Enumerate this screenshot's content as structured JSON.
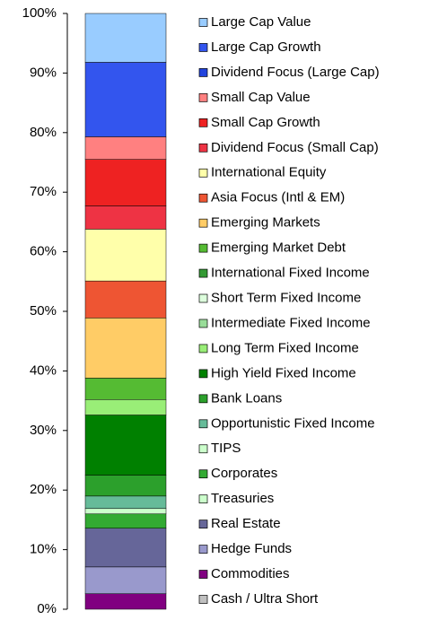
{
  "chart_data": {
    "type": "stacked_bar",
    "categories": [
      null
    ],
    "ylim": [
      0,
      100
    ],
    "yticks": [
      {
        "value": 0,
        "label": "0%"
      },
      {
        "value": 10,
        "label": "10%"
      },
      {
        "value": 20,
        "label": "20%"
      },
      {
        "value": 30,
        "label": "30%"
      },
      {
        "value": 40,
        "label": "40%"
      },
      {
        "value": 50,
        "label": "50%"
      },
      {
        "value": 60,
        "label": "60%"
      },
      {
        "value": 70,
        "label": "70%"
      },
      {
        "value": 80,
        "label": "80%"
      },
      {
        "value": 90,
        "label": "90%"
      },
      {
        "value": 100,
        "label": "100%"
      }
    ],
    "series": [
      {
        "name": "Cash / Ultra Short",
        "color": "#c0c0c0",
        "values": [
          0
        ]
      },
      {
        "name": "Commodities",
        "color": "#800080",
        "values": [
          2.6
        ]
      },
      {
        "name": "Hedge Funds",
        "color": "#9999cc",
        "values": [
          4.5
        ]
      },
      {
        "name": "Real Estate",
        "color": "#666699",
        "values": [
          6.5
        ]
      },
      {
        "name": "Treasuries",
        "color": "#ccffcc",
        "values": [
          0
        ]
      },
      {
        "name": "Corporates",
        "color": "#33aa33",
        "values": [
          2.4
        ]
      },
      {
        "name": "TIPS",
        "color": "#ccffcc",
        "values": [
          0.9
        ]
      },
      {
        "name": "Opportunistic Fixed Income",
        "color": "#66bb99",
        "values": [
          2.1
        ]
      },
      {
        "name": "Bank Loans",
        "color": "#2ca02c",
        "values": [
          3.5
        ]
      },
      {
        "name": "High Yield Fixed Income",
        "color": "#008000",
        "values": [
          10.1
        ]
      },
      {
        "name": "Long Term Fixed Income",
        "color": "#99ee77",
        "values": [
          2.6
        ]
      },
      {
        "name": "Intermediate Fixed Income",
        "color": "#99dd99",
        "values": [
          0
        ]
      },
      {
        "name": "Short Term Fixed Income",
        "color": "#ddffdd",
        "values": [
          0
        ]
      },
      {
        "name": "International Fixed Income",
        "color": "#339933",
        "values": [
          0
        ]
      },
      {
        "name": "Emerging Market Debt",
        "color": "#55bb33",
        "values": [
          3.6
        ]
      },
      {
        "name": "Emerging Markets",
        "color": "#ffcc66",
        "values": [
          10.1
        ]
      },
      {
        "name": "Asia Focus (Intl & EM)",
        "color": "#ee5533",
        "values": [
          6.2
        ]
      },
      {
        "name": "International Equity",
        "color": "#ffffaa",
        "values": [
          8.7
        ]
      },
      {
        "name": "Dividend Focus (Small Cap)",
        "color": "#ee3344",
        "values": [
          3.9
        ]
      },
      {
        "name": "Small Cap Growth",
        "color": "#ee2222",
        "values": [
          7.8
        ]
      },
      {
        "name": "Small Cap Value",
        "color": "#ff8080",
        "values": [
          3.8
        ]
      },
      {
        "name": "Dividend Focus (Large Cap)",
        "color": "#2244dd",
        "values": [
          0
        ]
      },
      {
        "name": "Large Cap Growth",
        "color": "#3355ee",
        "values": [
          12.5
        ]
      },
      {
        "name": "Large Cap Value",
        "color": "#99ccff",
        "values": [
          8.2
        ]
      }
    ]
  }
}
